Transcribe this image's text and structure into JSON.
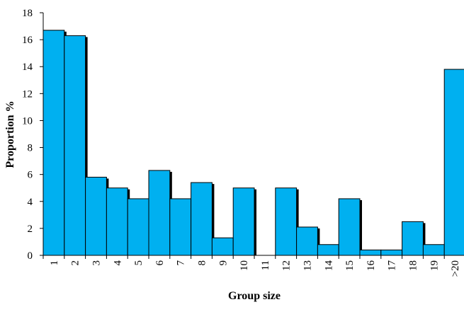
{
  "chart_data": {
    "type": "bar",
    "categories": [
      "1",
      "2",
      "3",
      "4",
      "5",
      "6",
      "7",
      "8",
      "9",
      "10",
      "11",
      "12",
      "13",
      "14",
      "15",
      "16",
      "17",
      "18",
      "19",
      ">20"
    ],
    "values": [
      16.7,
      16.3,
      5.8,
      5.0,
      4.2,
      6.3,
      4.2,
      5.4,
      1.3,
      5.0,
      0,
      5.0,
      2.1,
      0.8,
      4.2,
      0.4,
      0.4,
      2.5,
      0.8,
      13.8
    ],
    "xlabel": "Group size",
    "ylabel": "Proportion %",
    "ylim": [
      0,
      18
    ],
    "yticks": [
      0,
      2,
      4,
      6,
      8,
      10,
      12,
      14,
      16,
      18
    ],
    "grid": false,
    "legend": "none",
    "colors": {
      "bar_fill": "#00b0f0",
      "bar_stroke": "#000000",
      "bar_shadow": "#000000",
      "axis": "#000000"
    }
  }
}
